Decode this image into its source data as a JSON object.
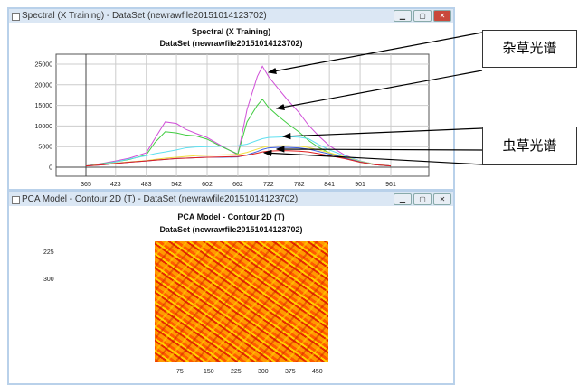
{
  "window1": {
    "title": "Spectral (X Training) - DataSet (newrawfile20151014123702)",
    "controls": [
      "minimize",
      "maximize",
      "close"
    ]
  },
  "window2": {
    "title": "PCA Model - Contour 2D (T) - DataSet (newrawfile20151014123702)",
    "controls": [
      "minimize",
      "maximize",
      "close"
    ]
  },
  "annotations": {
    "weed_label": "杂草光谱",
    "insect_label": "虫草光谱"
  },
  "chart_data": [
    {
      "type": "line",
      "title": "Spectral (X Training)",
      "subtitle": "DataSet (newrawfile20151014123702)",
      "xlim": [
        365,
        961
      ],
      "ylim": [
        0,
        25000
      ],
      "grid": true,
      "xticks": [
        "365",
        "423",
        "483",
        "542",
        "602",
        "662",
        "722",
        "782",
        "841",
        "901",
        "961"
      ],
      "yticks": [
        "0",
        "5000",
        "10000",
        "15000",
        "20000",
        "25000"
      ],
      "x": [
        365,
        400,
        423,
        450,
        483,
        500,
        520,
        542,
        560,
        580,
        602,
        630,
        662,
        680,
        700,
        710,
        722,
        740,
        760,
        782,
        800,
        820,
        841,
        870,
        901,
        930,
        961
      ],
      "series": [
        {
          "color": "#d050d8",
          "values": [
            300,
            1000,
            1500,
            2200,
            3500,
            7000,
            11000,
            10600,
            9200,
            8200,
            7200,
            5200,
            3000,
            14000,
            22000,
            24500,
            22000,
            19200,
            16200,
            13200,
            10200,
            7600,
            5200,
            3000,
            1500,
            700,
            300
          ]
        },
        {
          "color": "#40cc40",
          "values": [
            300,
            900,
            1300,
            1900,
            3000,
            6000,
            8600,
            8300,
            7800,
            7600,
            6800,
            5000,
            3200,
            11000,
            15000,
            16500,
            14500,
            12500,
            10500,
            8500,
            6500,
            4800,
            3500,
            2200,
            1200,
            600,
            300
          ]
        },
        {
          "color": "#60e0f0",
          "values": [
            300,
            800,
            1300,
            2000,
            2800,
            3300,
            3700,
            4200,
            4700,
            4900,
            5000,
            5100,
            5200,
            5600,
            6500,
            6900,
            7200,
            7300,
            7400,
            7300,
            6900,
            5500,
            4200,
            2800,
            1500,
            700,
            300
          ]
        },
        {
          "color": "#f0e040",
          "values": [
            300,
            700,
            1000,
            1300,
            1600,
            1900,
            2200,
            2400,
            2600,
            2800,
            2900,
            3000,
            3100,
            3600,
            4400,
            4800,
            5100,
            5200,
            5200,
            5100,
            4800,
            4200,
            3500,
            2500,
            1400,
            700,
            300
          ]
        },
        {
          "color": "#4060e0",
          "values": [
            300,
            600,
            900,
            1200,
            1500,
            1700,
            1900,
            2100,
            2200,
            2300,
            2400,
            2400,
            2500,
            3000,
            3800,
            4300,
            4700,
            4800,
            4800,
            4700,
            4400,
            3800,
            3200,
            2300,
            1300,
            600,
            300
          ]
        },
        {
          "color": "#e02020",
          "values": [
            300,
            600,
            900,
            1200,
            1500,
            1700,
            1900,
            2100,
            2200,
            2300,
            2400,
            2500,
            2600,
            2900,
            3400,
            3700,
            3900,
            4000,
            4000,
            3900,
            3700,
            3300,
            2800,
            2100,
            1200,
            600,
            300
          ]
        }
      ]
    },
    {
      "type": "heatmap",
      "title": "PCA Model - Contour 2D (T)",
      "subtitle": "DataSet (newrawfile20151014123702)",
      "xticks": [
        "75",
        "150",
        "225",
        "300",
        "375",
        "450"
      ],
      "yticks": [
        "225",
        "300"
      ]
    }
  ]
}
